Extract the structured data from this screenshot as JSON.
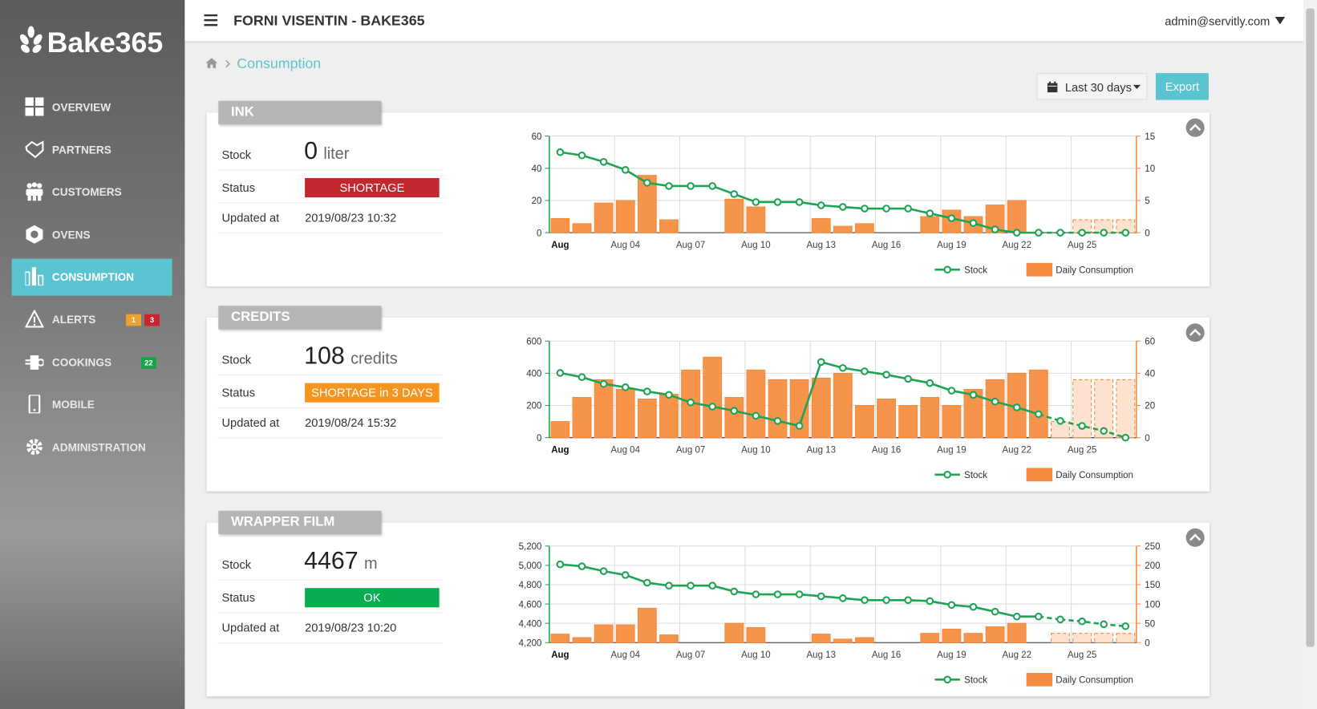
{
  "header": {
    "title": "FORNI VISENTIN - BAKE365",
    "user": "admin@servitly.com"
  },
  "sidebar": {
    "logo": "Bake365",
    "active": 4,
    "menu": [
      {
        "label": "OVERVIEW"
      },
      {
        "label": "PARTNERS"
      },
      {
        "label": "CUSTOMERS"
      },
      {
        "label": "OVENS"
      },
      {
        "label": "CONSUMPTION"
      },
      {
        "label": "ALERTS",
        "badges": [
          {
            "count": 1,
            "color": "#f0a030"
          },
          {
            "count": 3,
            "color": "#c9252f"
          }
        ]
      },
      {
        "label": "COOKINGS",
        "badges": [
          {
            "count": 22,
            "color": "#16a34a"
          }
        ]
      },
      {
        "label": "MOBILE"
      },
      {
        "label": "ADMINISTRATION"
      }
    ]
  },
  "breadcrumb": "Consumption",
  "toolbar": {
    "range": "Last 30 days",
    "export": "Export"
  },
  "panels": [
    {
      "title": "INK",
      "stock_label": "Stock",
      "stock": 0,
      "unit": "liter",
      "status_label": "Status",
      "status": "SHORTAGE",
      "status_color": "#c1272d",
      "updated_label": "Updated at",
      "updated": "2019/08/23 10:32",
      "chart": {
        "type": "bar_line",
        "categories": [
          "Aug",
          null,
          null,
          "Aug 04",
          null,
          null,
          "Aug 07",
          null,
          null,
          "Aug 10",
          null,
          null,
          "Aug 13",
          null,
          null,
          "Aug 16",
          null,
          null,
          "Aug 19",
          null,
          null,
          "Aug 22",
          null,
          null,
          "Aug 25",
          null,
          null
        ],
        "forecast_start": 23,
        "ylim": [
          0,
          60
        ],
        "yticks": [
          0,
          20,
          40,
          60
        ],
        "y2lim": [
          0,
          15
        ],
        "y2ticks": [
          0,
          5,
          10,
          15
        ],
        "series": [
          {
            "name": "Stock",
            "type": "line",
            "color": "#1fa354",
            "values": [
              50,
              48,
              44,
              39,
              31,
              29,
              29,
              29,
              24,
              19,
              19,
              19,
              17,
              16,
              15,
              15,
              15,
              12,
              9,
              6,
              2,
              0,
              0,
              0,
              0,
              0,
              0
            ]
          },
          {
            "name": "Daily Consumption",
            "type": "bar",
            "axis": "y2",
            "color": "#f58b3c",
            "values": [
              2.2,
              1.4,
              4.6,
              5,
              8.9,
              2,
              0,
              0,
              5.2,
              4,
              0,
              0,
              2.2,
              1,
              1.4,
              0,
              0,
              2.5,
              3.5,
              2.5,
              4.3,
              5,
              0,
              0,
              2,
              2,
              2
            ]
          }
        ]
      }
    },
    {
      "title": "CREDITS",
      "stock_label": "Stock",
      "stock": 108,
      "unit": "credits",
      "status_label": "Status",
      "status": "SHORTAGE in 3 DAYS",
      "status_color": "#f7941d",
      "updated_label": "Updated at",
      "updated": "2019/08/24 15:32",
      "chart": {
        "type": "bar_line",
        "categories": [
          "Aug",
          null,
          null,
          "Aug 04",
          null,
          null,
          "Aug 07",
          null,
          null,
          "Aug 10",
          null,
          null,
          "Aug 13",
          null,
          null,
          "Aug 16",
          null,
          null,
          "Aug 19",
          null,
          null,
          "Aug 22",
          null,
          null,
          "Aug 25",
          null,
          null
        ],
        "forecast_start": 23,
        "ylim": [
          0,
          600
        ],
        "yticks": [
          0,
          200,
          400,
          600
        ],
        "y2lim": [
          0,
          60
        ],
        "y2ticks": [
          0,
          20,
          40,
          60
        ],
        "series": [
          {
            "name": "Stock",
            "type": "line",
            "color": "#1fa354",
            "values": [
              402,
              376,
              334,
              313,
              287,
              266,
              219,
              193,
              167,
              136,
              104,
              73,
              470,
              433,
              412,
              391,
              365,
              339,
              292,
              266,
              224,
              188,
              146,
              104,
              73,
              42,
              0
            ]
          },
          {
            "name": "Daily Consumption",
            "type": "bar",
            "axis": "y2",
            "color": "#f58b3c",
            "values": [
              10,
              25,
              36,
              30,
              24,
              27,
              42,
              50,
              25,
              42,
              36,
              36,
              37,
              40,
              20,
              24,
              20,
              25,
              20,
              30,
              36,
              40,
              42,
              10,
              36,
              36,
              36
            ]
          }
        ]
      }
    },
    {
      "title": "WRAPPER FILM",
      "stock_label": "Stock",
      "stock": 4467,
      "unit": "m",
      "status_label": "Status",
      "status": "OK",
      "status_color": "#0aac50",
      "updated_label": "Updated at",
      "updated": "2019/08/23 10:20",
      "chart": {
        "type": "bar_line",
        "categories": [
          "Aug",
          null,
          null,
          "Aug 04",
          null,
          null,
          "Aug 07",
          null,
          null,
          "Aug 10",
          null,
          null,
          "Aug 13",
          null,
          null,
          "Aug 16",
          null,
          null,
          "Aug 19",
          null,
          null,
          "Aug 22",
          null,
          null,
          "Aug 25",
          null,
          null
        ],
        "forecast_start": 23,
        "ylim": [
          4200,
          5200
        ],
        "yticks": [
          {
            "value": 4200,
            "label": "4,200"
          },
          {
            "value": 4400,
            "label": "4,400"
          },
          {
            "value": 4600,
            "label": "4,600"
          },
          {
            "value": 4800,
            "label": "4,800"
          },
          {
            "value": 5000,
            "label": "5,000"
          },
          {
            "value": 5200,
            "label": "5,200"
          }
        ],
        "y2lim": [
          0,
          250
        ],
        "y2ticks": [
          0,
          50,
          100,
          150,
          200,
          250
        ],
        "series": [
          {
            "name": "Stock",
            "type": "line",
            "color": "#1fa354",
            "values": [
              5010,
              4990,
              4940,
              4900,
              4820,
              4790,
              4790,
              4790,
              4730,
              4700,
              4700,
              4700,
              4680,
              4660,
              4640,
              4640,
              4640,
              4630,
              4590,
              4570,
              4520,
              4470,
              4470,
              4440,
              4420,
              4390,
              4370
            ]
          },
          {
            "name": "Daily Consumption",
            "type": "bar",
            "axis": "y2",
            "color": "#f58b3c",
            "values": [
              22,
              13,
              46,
              46,
              89,
              20,
              0,
              0,
              50,
              39,
              0,
              0,
              22,
              9,
              13,
              0,
              0,
              24,
              35,
              24,
              41,
              50,
              0,
              24,
              24,
              24,
              24
            ]
          }
        ]
      }
    }
  ]
}
